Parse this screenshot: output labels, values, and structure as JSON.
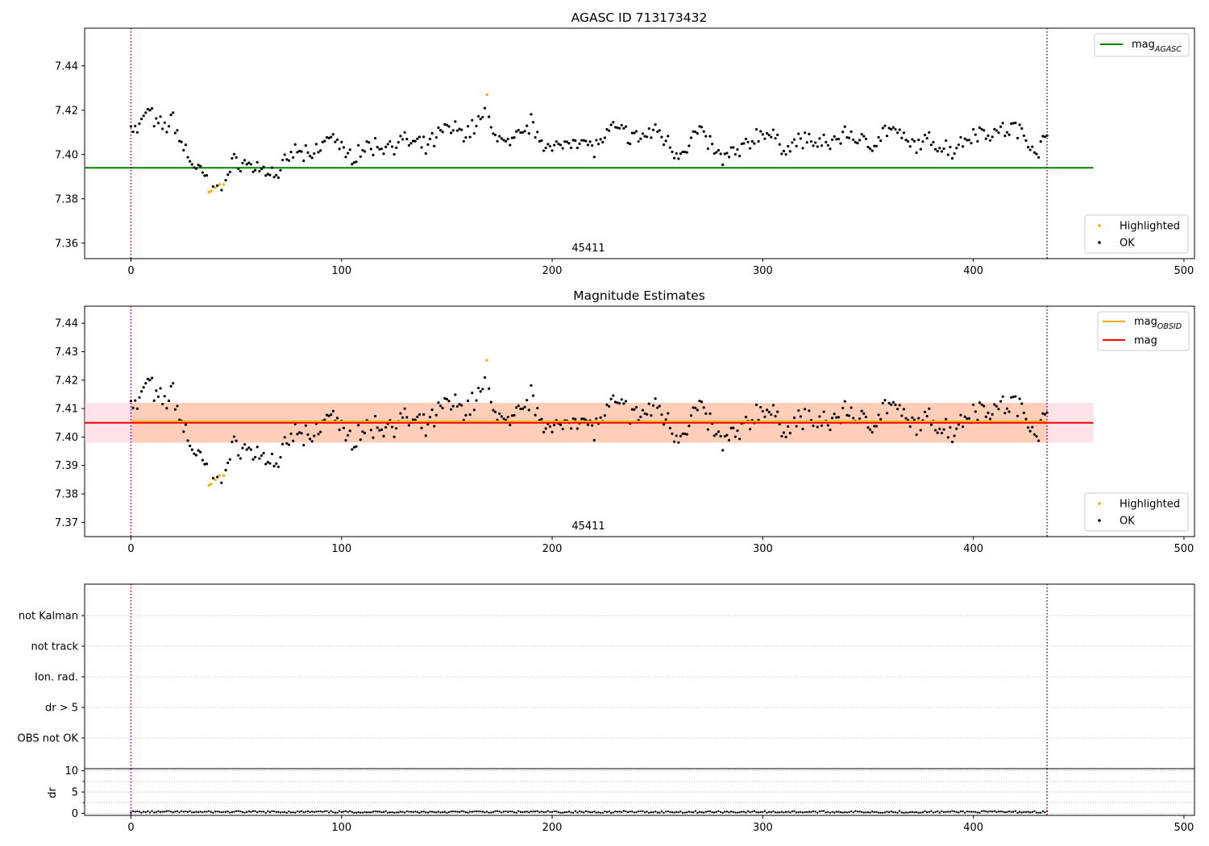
{
  "figure": {
    "title": "AGASC ID 713173432"
  },
  "x_ticks": [
    0,
    100,
    200,
    300,
    400,
    500
  ],
  "vlines": [
    0,
    435
  ],
  "colors": {
    "ok": "#000000",
    "highlighted": "#ffa500",
    "mag_agasc": "#008000",
    "mag_obsid": "#ffa500",
    "mag": "#ff0000",
    "mag_band_fill": "#ffc0cb",
    "obsid_band_fill": "#ffb380",
    "vline": "#800080",
    "grid": "#b0b0b0"
  },
  "panel1": {
    "obsid_label": "45411",
    "legend_top": {
      "mag_agasc_base": "mag",
      "mag_agasc_sub": "AGASC"
    },
    "legend_bottom": {
      "highlighted": "Highlighted",
      "ok": "OK"
    }
  },
  "panel2": {
    "title": "Magnitude Estimates",
    "obsid_label": "45411",
    "legend_top": {
      "mag_obsid_base": "mag",
      "mag_obsid_sub": "OBSID",
      "mag": "mag"
    },
    "legend_bottom": {
      "highlighted": "Highlighted",
      "ok": "OK"
    }
  },
  "panel3": {
    "flag_labels": [
      "not Kalman",
      "not track",
      "Ion. rad.",
      "dr > 5",
      "OBS not OK"
    ]
  },
  "panel4": {
    "ylabel": "dr"
  },
  "chart_data": [
    {
      "type": "scatter",
      "title": "AGASC ID 713173432",
      "xlim": [
        -22,
        505
      ],
      "ylim": [
        7.353,
        7.457
      ],
      "y_ticks": [
        7.36,
        7.38,
        7.4,
        7.42,
        7.44
      ],
      "hlines": [
        {
          "name": "mag_AGASC",
          "y": 7.394,
          "x": [
            -22,
            457
          ]
        }
      ],
      "x_keypoints": [
        0,
        3,
        8,
        12,
        17,
        20,
        24,
        30,
        34,
        37,
        42,
        45,
        50,
        56,
        64,
        70,
        78,
        85,
        96,
        102,
        110,
        120,
        130,
        140,
        150,
        160,
        168,
        175,
        180,
        190,
        200,
        210,
        220,
        230,
        240,
        250,
        260,
        270,
        280,
        290,
        300,
        310,
        320,
        330,
        340,
        350,
        360,
        370,
        380,
        390,
        400,
        410,
        420,
        430,
        435
      ],
      "y_keypoints": [
        7.414,
        7.41,
        7.421,
        7.413,
        7.413,
        7.416,
        7.405,
        7.395,
        7.391,
        7.387,
        7.387,
        7.389,
        7.398,
        7.395,
        7.393,
        7.391,
        7.402,
        7.398,
        7.41,
        7.398,
        7.403,
        7.404,
        7.406,
        7.403,
        7.412,
        7.41,
        7.418,
        7.407,
        7.404,
        7.414,
        7.401,
        7.408,
        7.403,
        7.412,
        7.407,
        7.411,
        7.4,
        7.411,
        7.398,
        7.402,
        7.411,
        7.403,
        7.407,
        7.404,
        7.41,
        7.404,
        7.412,
        7.404,
        7.406,
        7.402,
        7.41,
        7.41,
        7.412,
        7.402,
        7.407
      ],
      "point_count": 436,
      "highlighted_points": [
        [
          37,
          7.383
        ],
        [
          38,
          7.3835
        ],
        [
          40,
          7.385
        ],
        [
          42,
          7.3865
        ],
        [
          44,
          7.3865
        ],
        [
          169,
          7.427
        ]
      ]
    },
    {
      "type": "scatter",
      "title": "Magnitude Estimates",
      "xlim": [
        -22,
        505
      ],
      "ylim": [
        7.365,
        7.446
      ],
      "y_ticks": [
        7.37,
        7.38,
        7.39,
        7.4,
        7.41,
        7.42,
        7.43,
        7.44
      ],
      "hlines": [
        {
          "name": "mag",
          "y": 7.405,
          "x": [
            -22,
            457
          ]
        },
        {
          "name": "mag_OBSID",
          "y": 7.4055,
          "x": [
            0,
            435
          ]
        }
      ],
      "bands": [
        {
          "name": "mag",
          "y": [
            7.398,
            7.412
          ],
          "x": [
            -22,
            457
          ]
        },
        {
          "name": "mag_OBSID",
          "y": [
            7.398,
            7.412
          ],
          "x": [
            0,
            435
          ]
        }
      ],
      "same_series_as": 0
    },
    {
      "type": "scatter",
      "categories": [
        "not Kalman",
        "not track",
        "Ion. rad.",
        "dr > 5",
        "OBS not OK"
      ],
      "xlim": [
        -22,
        505
      ],
      "points": []
    },
    {
      "type": "scatter",
      "ylabel": "dr",
      "xlim": [
        -22,
        505
      ],
      "ylim": [
        -0.5,
        10.5
      ],
      "y_ticks": [
        0,
        5,
        10
      ],
      "point_count": 436,
      "dr_range": [
        0.1,
        0.8
      ]
    }
  ]
}
